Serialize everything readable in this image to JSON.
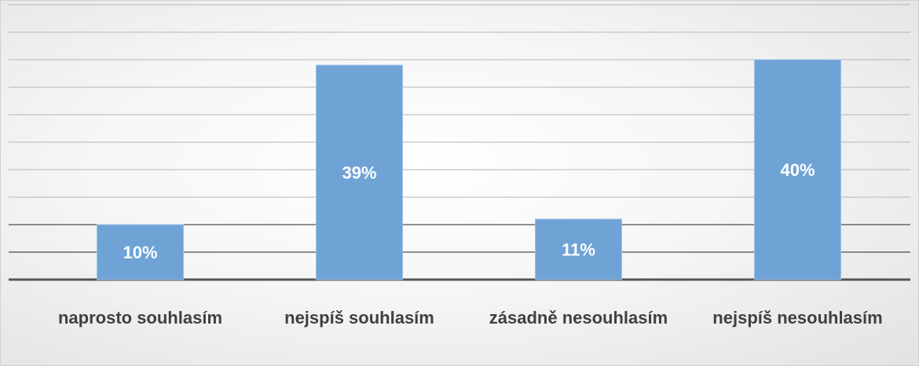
{
  "chart_data": {
    "type": "bar",
    "categories": [
      "naprosto souhlasím",
      "nejspíš souhlasím",
      "zásadně nesouhlasím",
      "nejspíš nesouhlasím"
    ],
    "values": [
      10,
      39,
      11,
      40
    ],
    "value_labels": [
      "10%",
      "39%",
      "11%",
      "40%"
    ],
    "color": "#6fa3d6",
    "ylim": [
      0,
      50
    ],
    "yticks": [
      0,
      5,
      10,
      15,
      20,
      25,
      30,
      35,
      40,
      45,
      50
    ],
    "grid": true
  }
}
